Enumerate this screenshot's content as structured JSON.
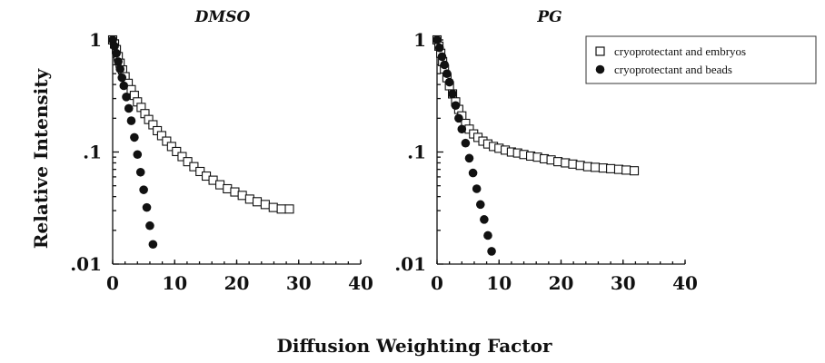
{
  "figure": {
    "ylabel": "Relative Intensity",
    "xlabel": "Diffusion Weighting Factor"
  },
  "legend": {
    "placement": "top-right",
    "entries": [
      {
        "label": "cryoprotectant and embryos",
        "marker": "open-square"
      },
      {
        "label": "cryoprotectant and beads",
        "marker": "filled-circle"
      }
    ]
  },
  "chart_data": [
    {
      "type": "scatter",
      "title": "DMSO",
      "xlim": [
        0,
        40
      ],
      "ylim": [
        0.01,
        1
      ],
      "yscale": "log",
      "xticks": [
        "0",
        "10",
        "20",
        "30",
        "40"
      ],
      "yticks": [
        {
          "value": 1,
          "label": "1"
        },
        {
          "value": 0.1,
          "label": ".1"
        },
        {
          "value": 0.01,
          "label": ".01"
        }
      ],
      "grid": false,
      "series": [
        {
          "name": "cryoprotectant and embryos",
          "marker": "open-square",
          "x": [
            0,
            0.3,
            0.6,
            0.9,
            1.2,
            1.6,
            2.0,
            2.5,
            3.0,
            3.5,
            4.0,
            4.6,
            5.2,
            5.8,
            6.5,
            7.2,
            7.9,
            8.7,
            9.5,
            10.3,
            11.2,
            12.1,
            13.1,
            14.1,
            15.1,
            16.2,
            17.3,
            18.5,
            19.7,
            20.9,
            22.1,
            23.3,
            24.6,
            25.9,
            27.2,
            28.5
          ],
          "y": [
            1.0,
            0.92,
            0.82,
            0.71,
            0.62,
            0.54,
            0.47,
            0.41,
            0.36,
            0.32,
            0.28,
            0.25,
            0.22,
            0.195,
            0.175,
            0.155,
            0.14,
            0.125,
            0.112,
            0.101,
            0.091,
            0.082,
            0.074,
            0.067,
            0.061,
            0.056,
            0.051,
            0.047,
            0.044,
            0.041,
            0.038,
            0.036,
            0.034,
            0.032,
            0.031,
            0.031
          ]
        },
        {
          "name": "cryoprotectant and beads",
          "marker": "filled-circle",
          "x": [
            0,
            0.3,
            0.6,
            0.9,
            1.2,
            1.5,
            1.8,
            2.2,
            2.6,
            3.0,
            3.5,
            4.0,
            4.5,
            5.0,
            5.5,
            6.0,
            6.5
          ],
          "y": [
            1.0,
            0.88,
            0.76,
            0.64,
            0.55,
            0.46,
            0.39,
            0.31,
            0.245,
            0.19,
            0.135,
            0.095,
            0.066,
            0.046,
            0.032,
            0.022,
            0.015
          ]
        }
      ]
    },
    {
      "type": "scatter",
      "title": "PG",
      "xlim": [
        0,
        40
      ],
      "ylim": [
        0.01,
        1
      ],
      "yscale": "log",
      "xticks": [
        "0",
        "10",
        "20",
        "30",
        "40"
      ],
      "yticks": [
        {
          "value": 1,
          "label": "1"
        },
        {
          "value": 0.1,
          "label": ".1"
        },
        {
          "value": 0.01,
          "label": ".01"
        }
      ],
      "grid": false,
      "series": [
        {
          "name": "cryoprotectant and embryos",
          "marker": "open-square",
          "x": [
            0,
            0.3,
            0.6,
            0.9,
            1.2,
            1.6,
            2.0,
            2.5,
            3.0,
            3.5,
            4.0,
            4.6,
            5.2,
            5.9,
            6.6,
            7.4,
            8.2,
            9.1,
            10.0,
            11.0,
            12.0,
            13.0,
            14.0,
            15.1,
            16.2,
            17.3,
            18.4,
            19.5,
            20.7,
            21.9,
            23.1,
            24.3,
            25.5,
            26.8,
            28.0,
            29.3,
            30.5,
            31.8
          ],
          "y": [
            1.0,
            0.88,
            0.76,
            0.64,
            0.55,
            0.46,
            0.39,
            0.33,
            0.28,
            0.24,
            0.21,
            0.18,
            0.16,
            0.145,
            0.135,
            0.125,
            0.118,
            0.112,
            0.108,
            0.104,
            0.1,
            0.098,
            0.095,
            0.092,
            0.09,
            0.087,
            0.085,
            0.082,
            0.08,
            0.078,
            0.076,
            0.074,
            0.073,
            0.072,
            0.071,
            0.07,
            0.069,
            0.068
          ]
        },
        {
          "name": "cryoprotectant and beads",
          "marker": "filled-circle",
          "x": [
            0,
            0.4,
            0.8,
            1.2,
            1.6,
            2.0,
            2.5,
            3.0,
            3.5,
            4.0,
            4.6,
            5.2,
            5.8,
            6.4,
            7.0,
            7.6,
            8.2,
            8.8
          ],
          "y": [
            1.0,
            0.85,
            0.71,
            0.6,
            0.5,
            0.42,
            0.33,
            0.26,
            0.2,
            0.16,
            0.12,
            0.088,
            0.065,
            0.047,
            0.034,
            0.025,
            0.018,
            0.013
          ]
        }
      ]
    }
  ]
}
